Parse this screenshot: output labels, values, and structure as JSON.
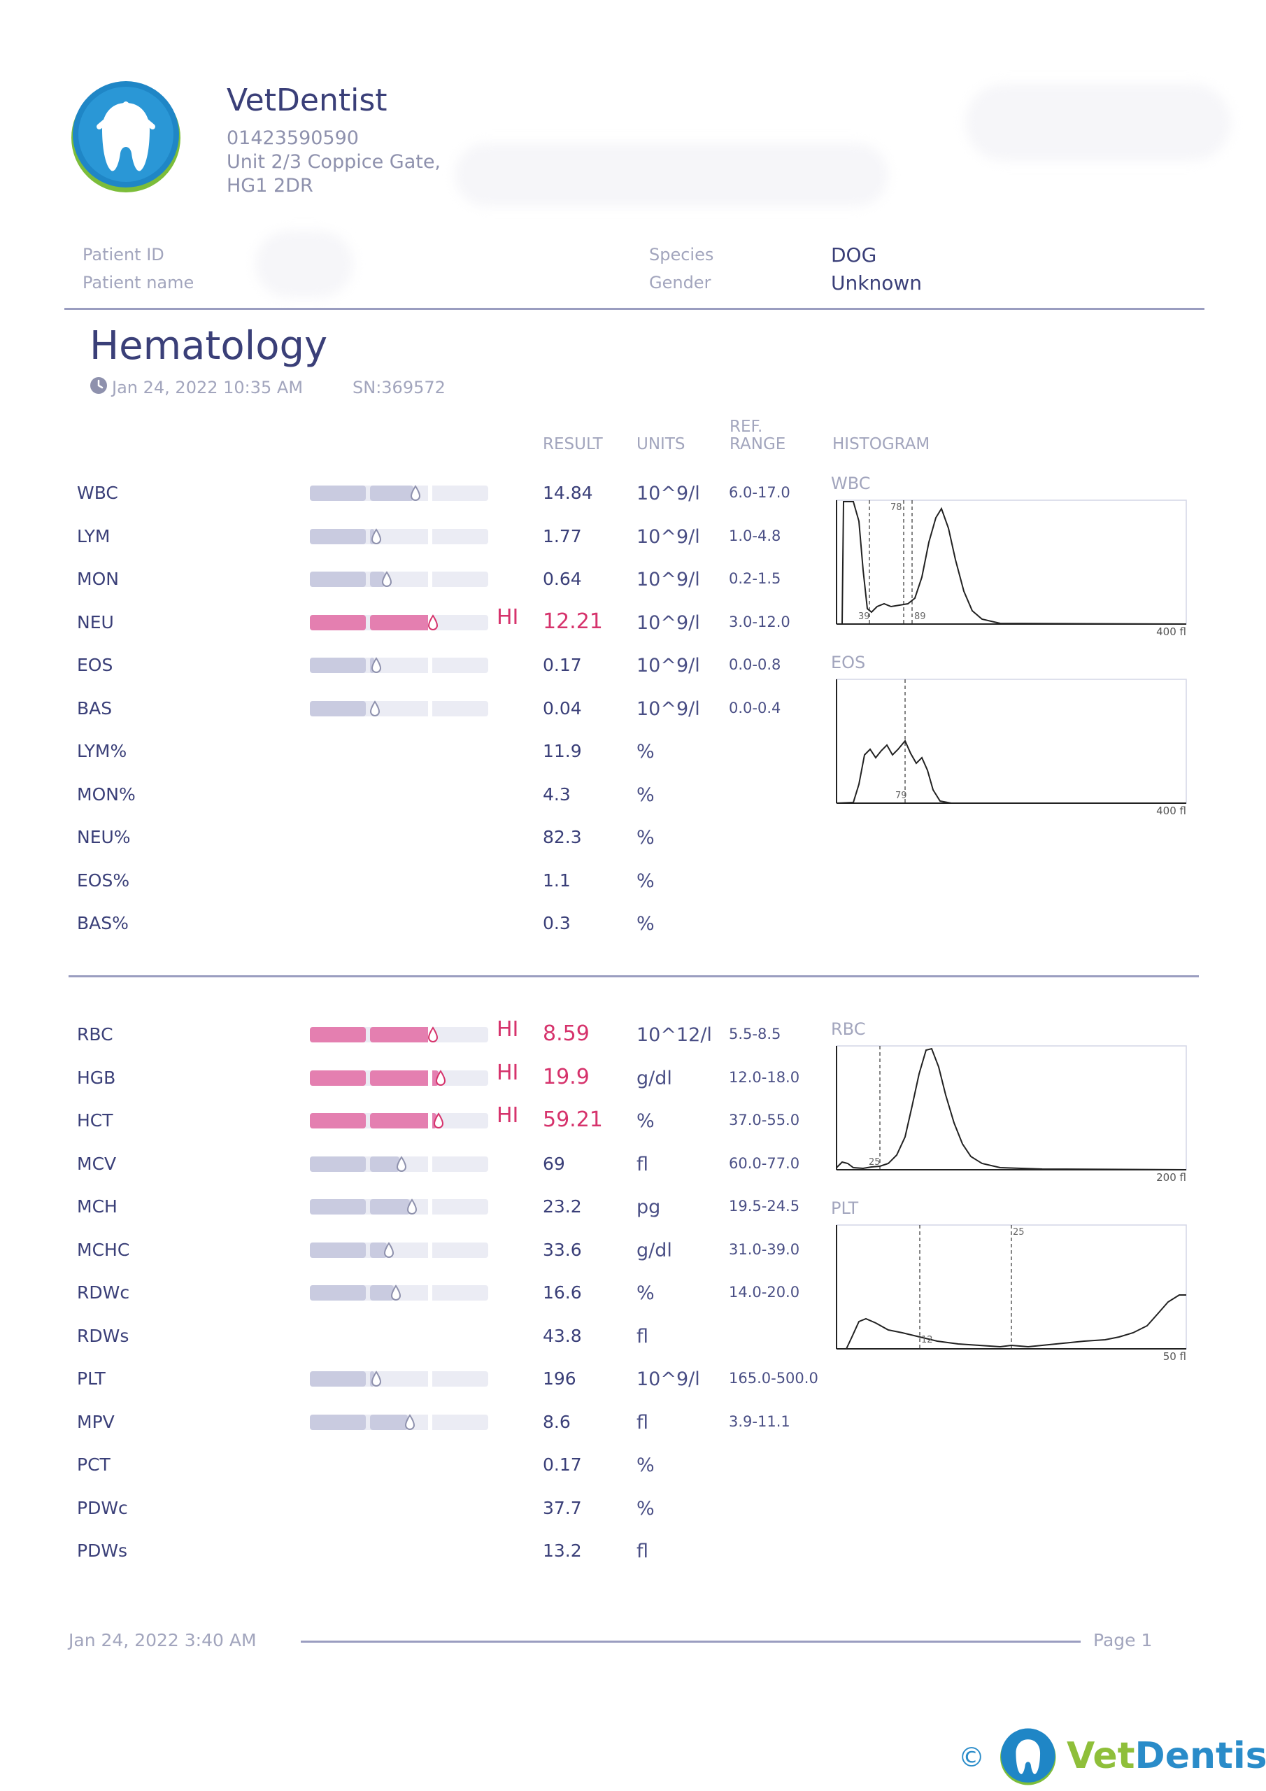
{
  "clinic": {
    "name": "VetDentist",
    "phone": "01423590590",
    "address1": "Unit 2/3 Coppice Gate,",
    "address2": "HG1 2DR"
  },
  "patient": {
    "id_label": "Patient ID",
    "name_label": "Patient name",
    "species_label": "Species",
    "species": "DOG",
    "gender_label": "Gender",
    "gender": "Unknown"
  },
  "report": {
    "title": "Hematology",
    "datetime": "Jan 24, 2022 10:35 AM",
    "serial": "SN:369572"
  },
  "columns": {
    "result": "RESULT",
    "units": "UNITS",
    "ref1": "REF.",
    "ref2": "RANGE",
    "histogram": "HISTOGRAM"
  },
  "flag_text": "HI",
  "colors": {
    "normal": "#c9cbe0",
    "high": "#e47fb0",
    "track": "#ebecf4"
  },
  "wbc_rows": [
    {
      "name": "WBC",
      "result": "14.84",
      "unit": "10^9/l",
      "ref": "6.0-17.0",
      "bar": 0.58,
      "flag": ""
    },
    {
      "name": "LYM",
      "result": "1.77",
      "unit": "10^9/l",
      "ref": "1.0-4.8",
      "bar": 0.36,
      "flag": ""
    },
    {
      "name": "MON",
      "result": "0.64",
      "unit": "10^9/l",
      "ref": "0.2-1.5",
      "bar": 0.42,
      "flag": ""
    },
    {
      "name": "NEU",
      "result": "12.21",
      "unit": "10^9/l",
      "ref": "3.0-12.0",
      "bar": 0.68,
      "flag": "HI"
    },
    {
      "name": "EOS",
      "result": "0.17",
      "unit": "10^9/l",
      "ref": "0.0-0.8",
      "bar": 0.36,
      "flag": ""
    },
    {
      "name": "BAS",
      "result": "0.04",
      "unit": "10^9/l",
      "ref": "0.0-0.4",
      "bar": 0.33,
      "flag": ""
    },
    {
      "name": "LYM%",
      "result": "11.9",
      "unit": "%",
      "ref": "",
      "bar": null,
      "flag": ""
    },
    {
      "name": "MON%",
      "result": "4.3",
      "unit": "%",
      "ref": "",
      "bar": null,
      "flag": ""
    },
    {
      "name": "NEU%",
      "result": "82.3",
      "unit": "%",
      "ref": "",
      "bar": null,
      "flag": ""
    },
    {
      "name": "EOS%",
      "result": "1.1",
      "unit": "%",
      "ref": "",
      "bar": null,
      "flag": ""
    },
    {
      "name": "BAS%",
      "result": "0.3",
      "unit": "%",
      "ref": "",
      "bar": null,
      "flag": ""
    }
  ],
  "rbc_rows": [
    {
      "name": "RBC",
      "result": "8.59",
      "unit": "10^12/l",
      "ref": "5.5-8.5",
      "bar": 0.68,
      "flag": "HI"
    },
    {
      "name": "HGB",
      "result": "19.9",
      "unit": "g/dl",
      "ref": "12.0-18.0",
      "bar": 0.72,
      "flag": "HI"
    },
    {
      "name": "HCT",
      "result": "59.21",
      "unit": "%",
      "ref": "37.0-55.0",
      "bar": 0.71,
      "flag": "HI"
    },
    {
      "name": "MCV",
      "result": "69",
      "unit": "fl",
      "ref": "60.0-77.0",
      "bar": 0.5,
      "flag": ""
    },
    {
      "name": "MCH",
      "result": "23.2",
      "unit": "pg",
      "ref": "19.5-24.5",
      "bar": 0.56,
      "flag": ""
    },
    {
      "name": "MCHC",
      "result": "33.6",
      "unit": "g/dl",
      "ref": "31.0-39.0",
      "bar": 0.43,
      "flag": ""
    },
    {
      "name": "RDWc",
      "result": "16.6",
      "unit": "%",
      "ref": "14.0-20.0",
      "bar": 0.47,
      "flag": ""
    },
    {
      "name": "RDWs",
      "result": "43.8",
      "unit": "fl",
      "ref": "",
      "bar": null,
      "flag": ""
    },
    {
      "name": "PLT",
      "result": "196",
      "unit": "10^9/l",
      "ref": "165.0-500.0",
      "bar": 0.36,
      "flag": ""
    },
    {
      "name": "MPV",
      "result": "8.6",
      "unit": "fl",
      "ref": "3.9-11.1",
      "bar": 0.55,
      "flag": ""
    },
    {
      "name": "PCT",
      "result": "0.17",
      "unit": "%",
      "ref": "",
      "bar": null,
      "flag": ""
    },
    {
      "name": "PDWc",
      "result": "37.7",
      "unit": "%",
      "ref": "",
      "bar": null,
      "flag": ""
    },
    {
      "name": "PDWs",
      "result": "13.2",
      "unit": "fl",
      "ref": "",
      "bar": null,
      "flag": ""
    }
  ],
  "histograms": [
    {
      "title": "WBC",
      "axis_end": "400 fl",
      "markers": [
        "78",
        "39",
        "89"
      ]
    },
    {
      "title": "EOS",
      "axis_end": "400 fl",
      "markers": [
        "79"
      ]
    },
    {
      "title": "RBC",
      "axis_end": "200 fl",
      "markers": [
        "25"
      ]
    },
    {
      "title": "PLT",
      "axis_end": "50 fl",
      "markers": [
        "25",
        "12"
      ]
    }
  ],
  "footer": {
    "date": "Jan 24, 2022 3:40 AM",
    "page": "Page 1"
  },
  "brand": {
    "copyright": "©",
    "name": "VetDentist"
  }
}
